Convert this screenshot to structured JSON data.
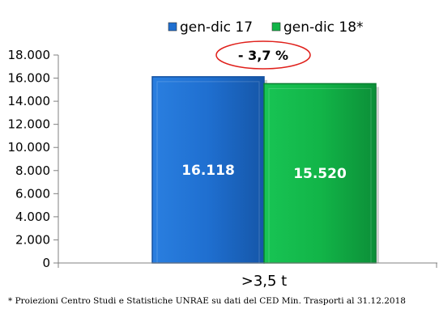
{
  "chart_data": {
    "type": "bar",
    "categories": [
      ">3,5 t"
    ],
    "series": [
      {
        "name": "gen-dic 17",
        "values": [
          16118
        ],
        "label": "16.118",
        "color": "#1F6FD0"
      },
      {
        "name": "gen-dic 18*",
        "values": [
          15520
        ],
        "label": "15.520",
        "color": "#12B548"
      }
    ],
    "ylim": [
      0,
      18000
    ],
    "yticks": [
      0,
      2000,
      4000,
      6000,
      8000,
      10000,
      12000,
      14000,
      16000,
      18000
    ],
    "ytick_labels": [
      "0",
      "2.000",
      "4.000",
      "6.000",
      "8.000",
      "10.000",
      "12.000",
      "14.000",
      "16.000",
      "18.000"
    ],
    "annotation": "- 3,7 %",
    "annotation_color": "#E0201B",
    "legend_position": "top-center",
    "grid": false
  },
  "footnote": "* Proiezioni Centro Studi e Statistiche UNRAE su dati del CED Min. Trasporti al 31.12.2018"
}
